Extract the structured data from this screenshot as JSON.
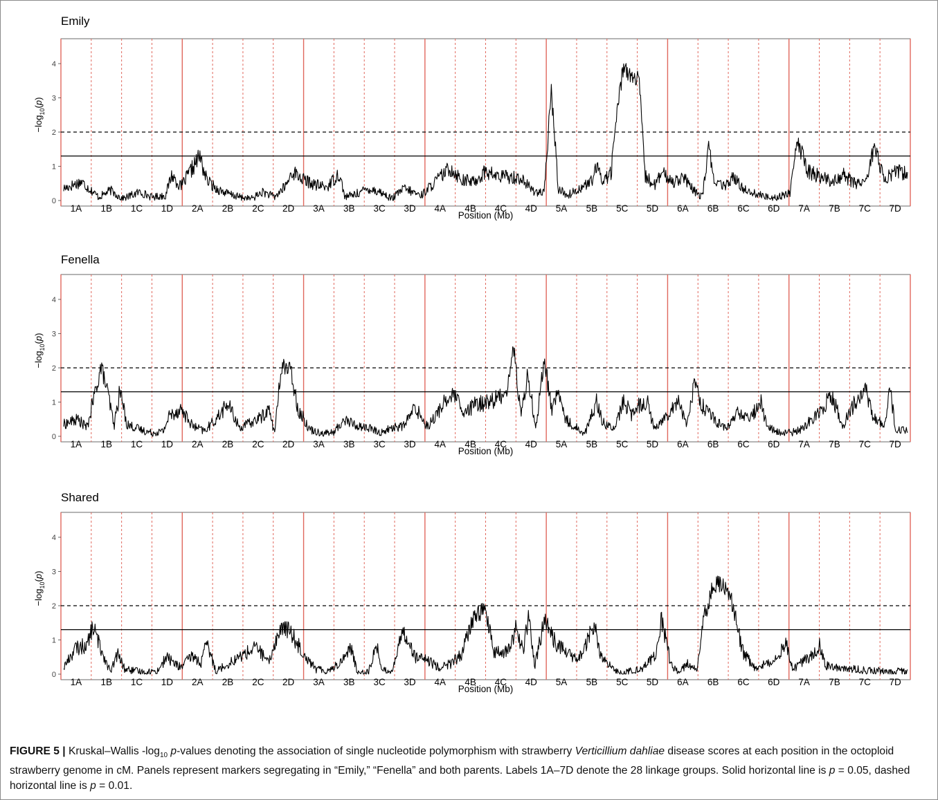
{
  "figure": {
    "caption_label": "FIGURE 5 |",
    "caption_parts": [
      {
        "t": " Kruskal–Wallis -log",
        "s": "n"
      },
      {
        "t": "10",
        "s": "sub"
      },
      {
        "t": " p",
        "s": "i"
      },
      {
        "t": "-values denoting the association of single nucleotide polymorphism with strawberry ",
        "s": "n"
      },
      {
        "t": "Verticillium dahliae",
        "s": "i"
      },
      {
        "t": " disease scores at each position in the octoploid strawberry genome in cM. Panels represent markers segregating in “Emily,” “Fenella” and both parents. Labels 1A–7D denote the 28 linkage groups. Solid horizontal line is ",
        "s": "n"
      },
      {
        "t": "p",
        "s": "i"
      },
      {
        "t": " = 0.05, dashed horizontal line is ",
        "s": "n"
      },
      {
        "t": "p",
        "s": "i"
      },
      {
        "t": " = 0.01.",
        "s": "n"
      }
    ]
  },
  "colors": {
    "chromosome_line": "#e0675c",
    "trace": "#000000",
    "panel_border": "#444444"
  },
  "chart_data": [
    {
      "type": "line",
      "title": "Emily",
      "xlabel": "Position (Mb)",
      "ylabel": "-log10(p)",
      "ylim": [
        0,
        4.75
      ],
      "yticks": [
        "0",
        "1",
        "2",
        "3",
        "4"
      ],
      "threshold_solid": 1.3,
      "threshold_dashed": 2.0,
      "linkage_groups": [
        "1A",
        "1B",
        "1C",
        "1D",
        "2A",
        "2B",
        "2C",
        "2D",
        "3A",
        "3B",
        "3C",
        "3D",
        "4A",
        "4B",
        "4C",
        "4D",
        "5A",
        "5B",
        "5C",
        "5D",
        "6A",
        "6B",
        "6C",
        "6D",
        "7A",
        "7B",
        "7C",
        "7D"
      ],
      "profile": [
        [
          0,
          0.35
        ],
        [
          1.5,
          0.55
        ],
        [
          3,
          0.1
        ],
        [
          4,
          0.3
        ],
        [
          5,
          0.05
        ],
        [
          6.5,
          0.25
        ],
        [
          7.5,
          0.1
        ],
        [
          8.7,
          0.15
        ],
        [
          9.2,
          0.75
        ],
        [
          10,
          0.4
        ],
        [
          11,
          0.95
        ],
        [
          11.6,
          1.3
        ],
        [
          12.2,
          0.6
        ],
        [
          13,
          0.35
        ],
        [
          14,
          0.2
        ],
        [
          15,
          0.1
        ],
        [
          16,
          0.05
        ],
        [
          17,
          0.25
        ],
        [
          18,
          0.1
        ],
        [
          19,
          0.45
        ],
        [
          19.5,
          0.85
        ],
        [
          20.5,
          0.6
        ],
        [
          21.5,
          0.45
        ],
        [
          22.5,
          0.4
        ],
        [
          23.5,
          0.8
        ],
        [
          24,
          0.1
        ],
        [
          25,
          0.2
        ],
        [
          26,
          0.35
        ],
        [
          27,
          0.25
        ],
        [
          28,
          0.05
        ],
        [
          29,
          0.35
        ],
        [
          30.5,
          0.15
        ],
        [
          32,
          0.65
        ],
        [
          33,
          0.95
        ],
        [
          34,
          0.6
        ],
        [
          35,
          0.55
        ],
        [
          36,
          0.85
        ],
        [
          37,
          0.7
        ],
        [
          38,
          0.7
        ],
        [
          39,
          0.65
        ],
        [
          40,
          0.3
        ],
        [
          41,
          0.2
        ],
        [
          41.6,
          3.25
        ],
        [
          42.2,
          0.35
        ],
        [
          43,
          0.15
        ],
        [
          44,
          0.35
        ],
        [
          45,
          0.55
        ],
        [
          45.5,
          0.95
        ],
        [
          46,
          0.6
        ],
        [
          46.7,
          0.8
        ],
        [
          47.2,
          2.6
        ],
        [
          47.8,
          4.0
        ],
        [
          48.4,
          3.6
        ],
        [
          49.1,
          3.5
        ],
        [
          49.6,
          0.7
        ],
        [
          50.5,
          0.45
        ],
        [
          51,
          0.8
        ],
        [
          52,
          0.55
        ],
        [
          52.8,
          0.7
        ],
        [
          53.7,
          0.3
        ],
        [
          54.5,
          0.1
        ],
        [
          55,
          1.55
        ],
        [
          55.6,
          0.5
        ],
        [
          56.5,
          0.4
        ],
        [
          57,
          0.7
        ],
        [
          58,
          0.35
        ],
        [
          59,
          0.2
        ],
        [
          60,
          0.1
        ],
        [
          61,
          0.1
        ],
        [
          62,
          0.25
        ],
        [
          62.6,
          1.75
        ],
        [
          63.5,
          0.85
        ],
        [
          64.5,
          0.7
        ],
        [
          65.5,
          0.55
        ],
        [
          66.5,
          0.75
        ],
        [
          67.5,
          0.5
        ],
        [
          68.5,
          0.6
        ],
        [
          69.2,
          1.65
        ],
        [
          70,
          0.55
        ],
        [
          71,
          0.9
        ],
        [
          72,
          0.75
        ]
      ]
    },
    {
      "type": "line",
      "title": "Fenella",
      "xlabel": "Position (Mb)",
      "ylabel": "-log10(p)",
      "ylim": [
        0,
        4.75
      ],
      "yticks": [
        "0",
        "1",
        "2",
        "3",
        "4"
      ],
      "threshold_solid": 1.3,
      "threshold_dashed": 2.0,
      "linkage_groups": [
        "1A",
        "1B",
        "1C",
        "1D",
        "2A",
        "2B",
        "2C",
        "2D",
        "3A",
        "3B",
        "3C",
        "3D",
        "4A",
        "4B",
        "4C",
        "4D",
        "5A",
        "5B",
        "5C",
        "5D",
        "6A",
        "6B",
        "6C",
        "6D",
        "7A",
        "7B",
        "7C",
        "7D"
      ],
      "profile": [
        [
          0,
          0.35
        ],
        [
          1.2,
          0.5
        ],
        [
          2,
          0.25
        ],
        [
          2.6,
          1.15
        ],
        [
          3.2,
          2.05
        ],
        [
          3.8,
          1.2
        ],
        [
          4.3,
          0.3
        ],
        [
          4.8,
          1.35
        ],
        [
          5.4,
          0.35
        ],
        [
          6.5,
          0.2
        ],
        [
          7.5,
          0.1
        ],
        [
          8.5,
          0.15
        ],
        [
          9,
          0.6
        ],
        [
          10,
          0.8
        ],
        [
          11,
          0.3
        ],
        [
          12,
          0.15
        ],
        [
          13,
          0.5
        ],
        [
          14,
          0.95
        ],
        [
          15,
          0.25
        ],
        [
          16,
          0.4
        ],
        [
          17,
          0.6
        ],
        [
          17.5,
          0.8
        ],
        [
          18,
          0.1
        ],
        [
          18.6,
          2.1
        ],
        [
          19.4,
          1.9
        ],
        [
          20,
          0.8
        ],
        [
          21,
          0.2
        ],
        [
          22,
          0.1
        ],
        [
          23,
          0.1
        ],
        [
          24,
          0.5
        ],
        [
          25,
          0.3
        ],
        [
          26,
          0.25
        ],
        [
          27,
          0.1
        ],
        [
          28,
          0.25
        ],
        [
          29,
          0.3
        ],
        [
          30,
          0.85
        ],
        [
          31,
          0.3
        ],
        [
          31.8,
          0.6
        ],
        [
          32.5,
          1.05
        ],
        [
          33.5,
          1.2
        ],
        [
          34,
          0.6
        ],
        [
          35,
          0.9
        ],
        [
          36,
          1.0
        ],
        [
          37,
          1.1
        ],
        [
          37.8,
          1.35
        ],
        [
          38.4,
          2.6
        ],
        [
          39,
          0.6
        ],
        [
          39.6,
          1.8
        ],
        [
          40.3,
          0.25
        ],
        [
          41,
          2.3
        ],
        [
          41.6,
          0.8
        ],
        [
          42.2,
          1.3
        ],
        [
          42.8,
          0.5
        ],
        [
          43.5,
          0.3
        ],
        [
          44.5,
          0.1
        ],
        [
          45.5,
          1.05
        ],
        [
          46,
          0.4
        ],
        [
          47,
          0.2
        ],
        [
          47.8,
          1.05
        ],
        [
          48.5,
          0.6
        ],
        [
          49,
          0.9
        ],
        [
          49.8,
          1.05
        ],
        [
          50.3,
          0.3
        ],
        [
          51,
          0.4
        ],
        [
          52,
          0.9
        ],
        [
          52.5,
          1.05
        ],
        [
          53.2,
          0.3
        ],
        [
          53.8,
          1.6
        ],
        [
          54.5,
          0.9
        ],
        [
          55.5,
          0.5
        ],
        [
          56.5,
          0.2
        ],
        [
          57.5,
          0.7
        ],
        [
          58.5,
          0.5
        ],
        [
          59.5,
          1.0
        ],
        [
          60,
          0.3
        ],
        [
          61,
          0.1
        ],
        [
          62,
          0.1
        ],
        [
          63,
          0.2
        ],
        [
          64.5,
          0.75
        ],
        [
          65.5,
          1.2
        ],
        [
          66.5,
          0.3
        ],
        [
          67.5,
          1.0
        ],
        [
          68.5,
          1.35
        ],
        [
          69,
          0.6
        ],
        [
          70,
          0.3
        ],
        [
          70.5,
          1.35
        ],
        [
          71,
          0.2
        ],
        [
          72,
          0.15
        ]
      ]
    },
    {
      "type": "line",
      "title": "Shared",
      "xlabel": "Position (Mb)",
      "ylabel": "-log10(p)",
      "ylim": [
        0,
        4.75
      ],
      "yticks": [
        "0",
        "1",
        "2",
        "3",
        "4"
      ],
      "threshold_solid": 1.3,
      "threshold_dashed": 2.0,
      "linkage_groups": [
        "1A",
        "1B",
        "1C",
        "1D",
        "2A",
        "2B",
        "2C",
        "2D",
        "3A",
        "3B",
        "3C",
        "3D",
        "4A",
        "4B",
        "4C",
        "4D",
        "5A",
        "5B",
        "5C",
        "5D",
        "6A",
        "6B",
        "6C",
        "6D",
        "7A",
        "7B",
        "7C",
        "7D"
      ],
      "profile": [
        [
          0,
          0.2
        ],
        [
          1,
          0.75
        ],
        [
          2,
          0.85
        ],
        [
          2.5,
          1.4
        ],
        [
          3,
          0.9
        ],
        [
          4,
          0.05
        ],
        [
          4.6,
          0.6
        ],
        [
          5.2,
          0.15
        ],
        [
          6,
          0.1
        ],
        [
          7,
          0.05
        ],
        [
          8,
          0.1
        ],
        [
          8.8,
          0.5
        ],
        [
          9.5,
          0.3
        ],
        [
          10,
          0.2
        ],
        [
          11,
          0.55
        ],
        [
          11.7,
          0.3
        ],
        [
          12.2,
          0.9
        ],
        [
          13,
          0.1
        ],
        [
          15,
          0.5
        ],
        [
          16.5,
          0.8
        ],
        [
          17.5,
          0.3
        ],
        [
          18,
          0.9
        ],
        [
          18.6,
          1.35
        ],
        [
          19.2,
          1.3
        ],
        [
          20.5,
          0.6
        ],
        [
          21.5,
          0.15
        ],
        [
          22.5,
          0.1
        ],
        [
          23.5,
          0.3
        ],
        [
          24.5,
          0.8
        ],
        [
          25,
          0.1
        ],
        [
          26,
          0.05
        ],
        [
          26.7,
          0.85
        ],
        [
          27.2,
          0.1
        ],
        [
          28,
          0.1
        ],
        [
          29,
          1.3
        ],
        [
          30,
          0.5
        ],
        [
          31,
          0.4
        ],
        [
          32,
          0.2
        ],
        [
          33,
          0.3
        ],
        [
          34,
          0.6
        ],
        [
          35,
          1.7
        ],
        [
          36,
          1.9
        ],
        [
          36.7,
          0.6
        ],
        [
          38,
          0.7
        ],
        [
          38.6,
          1.35
        ],
        [
          39.2,
          0.7
        ],
        [
          39.7,
          1.7
        ],
        [
          40.2,
          0.2
        ],
        [
          41,
          1.6
        ],
        [
          42,
          0.9
        ],
        [
          43.8,
          0.4
        ],
        [
          44.4,
          0.7
        ],
        [
          45.3,
          1.5
        ],
        [
          45.8,
          0.5
        ],
        [
          47,
          0.1
        ],
        [
          48,
          0.05
        ],
        [
          49.5,
          0.2
        ],
        [
          50.5,
          0.55
        ],
        [
          51,
          1.6
        ],
        [
          51.8,
          0.3
        ],
        [
          52.5,
          0.05
        ],
        [
          53.2,
          0.3
        ],
        [
          54,
          0.1
        ],
        [
          54.5,
          1.5
        ],
        [
          55.5,
          2.65
        ],
        [
          56.2,
          2.6
        ],
        [
          57,
          2.1
        ],
        [
          58,
          0.6
        ],
        [
          59,
          0.2
        ],
        [
          60,
          0.3
        ],
        [
          61,
          0.6
        ],
        [
          61.6,
          0.95
        ],
        [
          62.2,
          0.15
        ],
        [
          63,
          0.35
        ],
        [
          64,
          0.6
        ],
        [
          64.5,
          0.9
        ],
        [
          65,
          0.25
        ],
        [
          66,
          0.2
        ],
        [
          67.5,
          0.15
        ],
        [
          68.5,
          0.1
        ],
        [
          69.5,
          0.1
        ],
        [
          70.5,
          0.05
        ],
        [
          71.5,
          0.1
        ],
        [
          72,
          0.05
        ]
      ]
    }
  ]
}
